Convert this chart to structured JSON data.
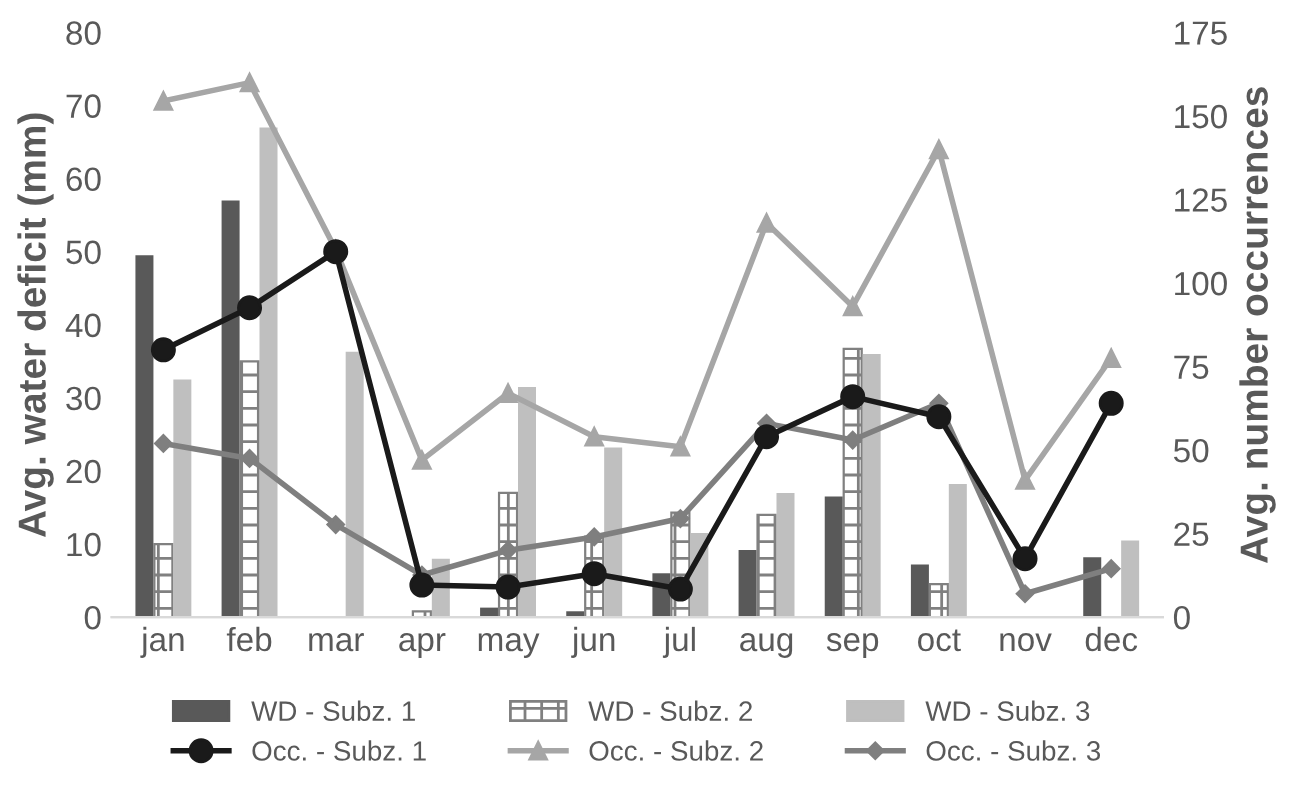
{
  "chart_data": {
    "type": "bar",
    "ylabel": "Avg. water deficit (mm)",
    "y2label": "Avg. number occurrences",
    "categories": [
      "jan",
      "feb",
      "mar",
      "apr",
      "may",
      "jun",
      "jul",
      "aug",
      "sep",
      "oct",
      "nov",
      "dec"
    ],
    "series": [
      {
        "name": "WD - Subz. 1",
        "color": "#595959",
        "values": [
          49.5,
          57,
          0,
          0,
          1.3,
          0.8,
          6,
          9.2,
          16.5,
          7.2,
          0,
          8.2
        ]
      },
      {
        "name": "WD - Subz. 2",
        "color": "#808080",
        "values": [
          10,
          35,
          0,
          0.8,
          17,
          11,
          14.3,
          14,
          36.7,
          4.5,
          0,
          0
        ]
      },
      {
        "name": "WD - Subz. 3",
        "color": "#bfbfbf",
        "values": [
          32.5,
          67,
          36.3,
          8,
          31.5,
          23.2,
          11.5,
          17,
          36,
          18.2,
          0,
          10.5
        ]
      },
      {
        "name": "Occ. - Subz. 1",
        "type": "line",
        "axis": "y2",
        "marker": "circle",
        "color": "#1a1a1a",
        "values": [
          80,
          92.6,
          109.4,
          9.6,
          9,
          13,
          8.4,
          54,
          66,
          60,
          17.5,
          64
        ]
      },
      {
        "name": "Occ. - Subz. 2",
        "type": "line",
        "axis": "y2",
        "marker": "triangle",
        "color": "#a6a6a6",
        "values": [
          154.5,
          160,
          110,
          47,
          67,
          54,
          51,
          118,
          93,
          140,
          41,
          77.5
        ]
      },
      {
        "name": "Occ. - Subz. 3",
        "type": "line",
        "axis": "y2",
        "marker": "diamond",
        "color": "#7f7f7f",
        "values": [
          52,
          47.5,
          27.7,
          12.6,
          20,
          24,
          29.5,
          58,
          53,
          64,
          7,
          14.5
        ]
      }
    ],
    "ylim": [
      0,
      80
    ],
    "yticks": [
      0,
      10,
      20,
      30,
      40,
      50,
      60,
      70,
      80
    ],
    "y2lim": [
      0,
      175
    ],
    "y2ticks": [
      0,
      25,
      50,
      75,
      100,
      125,
      150,
      175
    ],
    "grid": false,
    "legend": "bottom"
  }
}
